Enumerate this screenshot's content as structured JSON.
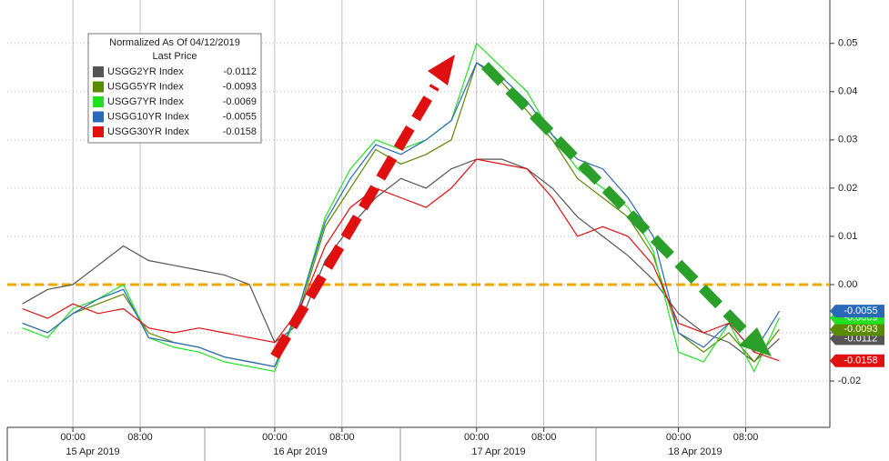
{
  "chart_data": {
    "type": "line",
    "legend_title": "Normalized As Of 04/12/2019",
    "legend_subtitle": "Last Price",
    "x": [
      "2019-04-14 18:00",
      "2019-04-14 21:00",
      "2019-04-15 00:00",
      "2019-04-15 03:00",
      "2019-04-15 06:00",
      "2019-04-15 09:00",
      "2019-04-15 12:00",
      "2019-04-15 15:00",
      "2019-04-15 18:00",
      "2019-04-15 21:00",
      "2019-04-16 00:00",
      "2019-04-16 03:00",
      "2019-04-16 06:00",
      "2019-04-16 09:00",
      "2019-04-16 12:00",
      "2019-04-16 15:00",
      "2019-04-16 18:00",
      "2019-04-16 21:00",
      "2019-04-17 00:00",
      "2019-04-17 03:00",
      "2019-04-17 06:00",
      "2019-04-17 09:00",
      "2019-04-17 12:00",
      "2019-04-17 15:00",
      "2019-04-17 18:00",
      "2019-04-17 21:00",
      "2019-04-18 00:00",
      "2019-04-18 03:00",
      "2019-04-18 06:00",
      "2019-04-18 09:00",
      "2019-04-18 12:00"
    ],
    "series": [
      {
        "name": "USGG2YR Index",
        "color": "#555555",
        "last_label": "-0.0112",
        "values": [
          -0.004,
          -0.001,
          0.0,
          0.004,
          0.008,
          0.005,
          0.004,
          0.003,
          0.002,
          0.0,
          -0.012,
          -0.008,
          0.005,
          0.012,
          0.018,
          0.022,
          0.02,
          0.024,
          0.026,
          0.026,
          0.024,
          0.02,
          0.014,
          0.01,
          0.006,
          0.001,
          -0.006,
          -0.01,
          -0.012,
          -0.016,
          -0.0112
        ]
      },
      {
        "name": "USGG5YR Index",
        "color": "#5a8a00",
        "last_label": "-0.0093",
        "values": [
          -0.008,
          -0.01,
          -0.006,
          -0.004,
          -0.002,
          -0.01,
          -0.012,
          -0.013,
          -0.015,
          -0.016,
          -0.017,
          -0.005,
          0.012,
          0.02,
          0.028,
          0.025,
          0.027,
          0.03,
          0.046,
          0.042,
          0.036,
          0.03,
          0.022,
          0.018,
          0.014,
          0.006,
          -0.01,
          -0.014,
          -0.01,
          -0.016,
          -0.0093
        ]
      },
      {
        "name": "USGG7YR Index",
        "color": "#22e022",
        "last_label": "-0.0069",
        "values": [
          -0.009,
          -0.011,
          -0.005,
          -0.003,
          0.0,
          -0.011,
          -0.013,
          -0.014,
          -0.016,
          -0.017,
          -0.018,
          -0.004,
          0.014,
          0.024,
          0.03,
          0.028,
          0.03,
          0.034,
          0.05,
          0.045,
          0.04,
          0.031,
          0.024,
          0.02,
          0.016,
          0.007,
          -0.014,
          -0.016,
          -0.008,
          -0.018,
          -0.0069
        ]
      },
      {
        "name": "USGG10YR Index",
        "color": "#2a68b8",
        "last_label": "-0.0055",
        "values": [
          -0.008,
          -0.01,
          -0.006,
          -0.003,
          -0.001,
          -0.011,
          -0.012,
          -0.013,
          -0.015,
          -0.016,
          -0.017,
          -0.004,
          0.013,
          0.022,
          0.029,
          0.027,
          0.03,
          0.034,
          0.046,
          0.043,
          0.038,
          0.031,
          0.026,
          0.024,
          0.018,
          0.01,
          -0.01,
          -0.013,
          -0.008,
          -0.014,
          -0.0055
        ]
      },
      {
        "name": "USGG30YR Index",
        "color": "#e01010",
        "last_label": "-0.0158",
        "values": [
          -0.005,
          -0.007,
          -0.004,
          -0.006,
          -0.005,
          -0.009,
          -0.01,
          -0.009,
          -0.01,
          -0.011,
          -0.012,
          -0.005,
          0.008,
          0.016,
          0.02,
          0.018,
          0.016,
          0.02,
          0.026,
          0.025,
          0.024,
          0.018,
          0.01,
          0.012,
          0.01,
          0.004,
          -0.008,
          -0.01,
          -0.008,
          -0.014,
          -0.0158
        ]
      }
    ],
    "xlim": [
      "2019-04-14 16:12",
      "2019-04-18 18:00"
    ],
    "xticks": [
      {
        "value": "2019-04-15 00:00",
        "label": "00:00"
      },
      {
        "value": "2019-04-15 08:00",
        "label": "08:00"
      },
      {
        "value": "2019-04-16 00:00",
        "label": "00:00"
      },
      {
        "value": "2019-04-16 08:00",
        "label": "08:00"
      },
      {
        "value": "2019-04-17 00:00",
        "label": "00:00"
      },
      {
        "value": "2019-04-17 08:00",
        "label": "08:00"
      },
      {
        "value": "2019-04-18 00:00",
        "label": "00:00"
      },
      {
        "value": "2019-04-18 08:00",
        "label": "08:00"
      }
    ],
    "date_labels": [
      "15 Apr 2019",
      "16 Apr 2019",
      "17 Apr 2019",
      "18 Apr 2019"
    ],
    "ylim": [
      -0.0296,
      0.059
    ],
    "yticks": [
      {
        "value": -0.02,
        "label": "-0.02"
      },
      {
        "value": -0.01,
        "label": "-0.01"
      },
      {
        "value": 0,
        "label": "0.00"
      },
      {
        "value": 0.01,
        "label": "0.01"
      },
      {
        "value": 0.02,
        "label": "0.02"
      },
      {
        "value": 0.03,
        "label": "0.03"
      },
      {
        "value": 0.04,
        "label": "0.04"
      },
      {
        "value": 0.05,
        "label": "0.05"
      }
    ],
    "hline": {
      "value": 0,
      "color": "#f0a800"
    },
    "grid": true
  }
}
